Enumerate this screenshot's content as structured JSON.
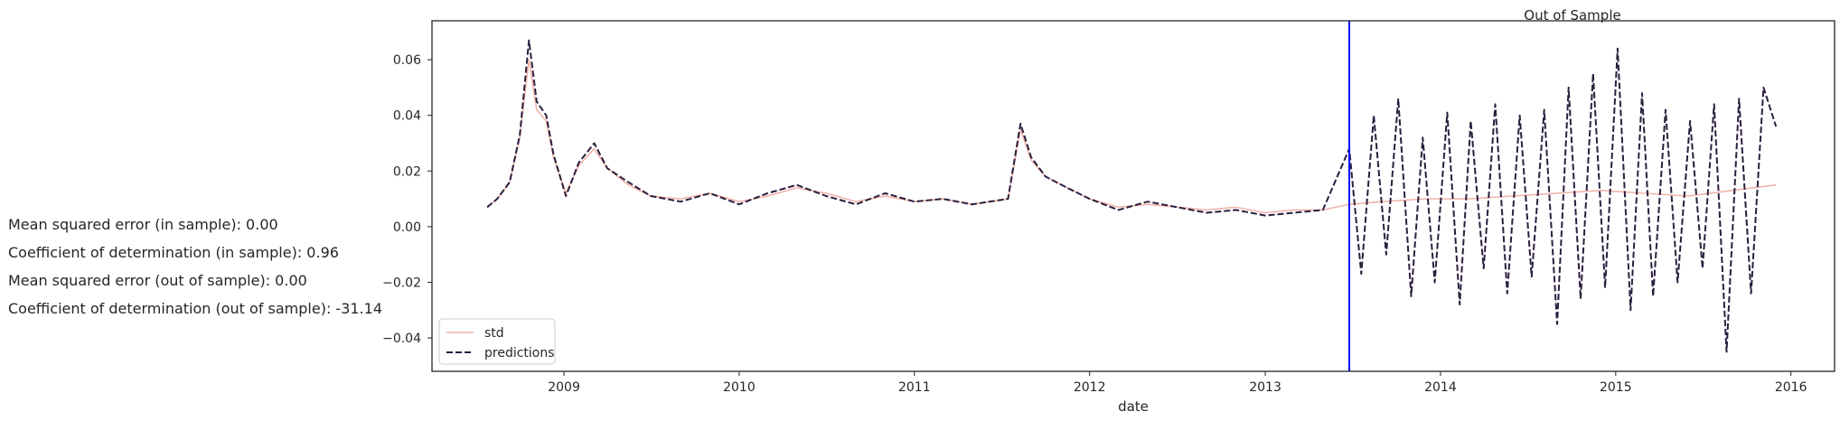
{
  "stats": {
    "mse_in": "Mean squared error (in sample): 0.00",
    "r2_in": "Coefficient of determination (in sample): 0.96",
    "mse_out": "Mean squared error (out of sample): 0.00",
    "r2_out": "Coefficient of determination (out of sample): -31.14"
  },
  "chart_data": {
    "type": "line",
    "title": "",
    "annotation": "Out of Sample",
    "xlabel": "date",
    "ylabel": "",
    "xlim": [
      "2008-04-01",
      "2016-04-01"
    ],
    "ylim": [
      -0.052,
      0.074
    ],
    "x_ticks": [
      "2009",
      "2010",
      "2011",
      "2012",
      "2013",
      "2014",
      "2015",
      "2016"
    ],
    "y_ticks": [
      -0.04,
      -0.02,
      0.0,
      0.02,
      0.04,
      0.06
    ],
    "y_tick_labels": [
      "−0.04",
      "−0.02",
      "0.00",
      "0.02",
      "0.04",
      "0.06"
    ],
    "split_date": "2013-06-25",
    "split_line_color": "#0000ff",
    "grid": false,
    "legend_position": "lower-left",
    "series": [
      {
        "name": "std",
        "style": "solid",
        "color": "#f1b0a8",
        "x": [
          "2008-07-25",
          "2008-08-15",
          "2008-09-10",
          "2008-10-01",
          "2008-10-20",
          "2008-11-05",
          "2008-11-25",
          "2008-12-10",
          "2009-01-05",
          "2009-02-01",
          "2009-03-05",
          "2009-04-01",
          "2009-05-15",
          "2009-07-01",
          "2009-09-01",
          "2009-11-01",
          "2010-01-01",
          "2010-03-01",
          "2010-05-01",
          "2010-07-01",
          "2010-09-01",
          "2010-11-01",
          "2011-01-01",
          "2011-03-01",
          "2011-05-01",
          "2011-07-15",
          "2011-08-10",
          "2011-09-01",
          "2011-10-01",
          "2011-11-15",
          "2012-01-01",
          "2012-03-01",
          "2012-05-01",
          "2012-07-01",
          "2012-09-01",
          "2012-11-01",
          "2013-01-01",
          "2013-03-01",
          "2013-05-01",
          "2013-06-25",
          "2013-09-01",
          "2013-12-01",
          "2014-03-01",
          "2014-06-01",
          "2014-09-01",
          "2014-12-01",
          "2015-03-01",
          "2015-06-01",
          "2015-09-01",
          "2015-12-01"
        ],
        "y": [
          0.007,
          0.01,
          0.016,
          0.032,
          0.06,
          0.042,
          0.038,
          0.025,
          0.012,
          0.022,
          0.028,
          0.021,
          0.015,
          0.011,
          0.01,
          0.012,
          0.009,
          0.011,
          0.014,
          0.012,
          0.009,
          0.011,
          0.009,
          0.01,
          0.008,
          0.01,
          0.035,
          0.024,
          0.018,
          0.014,
          0.01,
          0.007,
          0.008,
          0.007,
          0.006,
          0.007,
          0.005,
          0.006,
          0.006,
          0.008,
          0.009,
          0.01,
          0.01,
          0.011,
          0.012,
          0.013,
          0.012,
          0.011,
          0.013,
          0.015
        ]
      },
      {
        "name": "predictions",
        "style": "dashed",
        "color": "#2b1e3e",
        "x": [
          "2008-07-25",
          "2008-08-15",
          "2008-09-10",
          "2008-10-01",
          "2008-10-20",
          "2008-11-05",
          "2008-11-25",
          "2008-12-10",
          "2009-01-05",
          "2009-02-01",
          "2009-03-05",
          "2009-04-01",
          "2009-05-15",
          "2009-07-01",
          "2009-09-01",
          "2009-11-01",
          "2010-01-01",
          "2010-03-01",
          "2010-05-01",
          "2010-07-01",
          "2010-09-01",
          "2010-11-01",
          "2011-01-01",
          "2011-03-01",
          "2011-05-01",
          "2011-07-15",
          "2011-08-10",
          "2011-09-01",
          "2011-10-01",
          "2011-11-15",
          "2012-01-01",
          "2012-03-01",
          "2012-05-01",
          "2012-07-01",
          "2012-09-01",
          "2012-11-01",
          "2013-01-01",
          "2013-03-01",
          "2013-05-01",
          "2013-06-25",
          "2013-07-20",
          "2013-08-15",
          "2013-09-10",
          "2013-10-05",
          "2013-11-01",
          "2013-11-25",
          "2013-12-20",
          "2014-01-15",
          "2014-02-10",
          "2014-03-05",
          "2014-04-01",
          "2014-04-25",
          "2014-05-20",
          "2014-06-15",
          "2014-07-10",
          "2014-08-05",
          "2014-09-01",
          "2014-09-25",
          "2014-10-20",
          "2014-11-15",
          "2014-12-10",
          "2015-01-05",
          "2015-02-01",
          "2015-02-25",
          "2015-03-20",
          "2015-04-15",
          "2015-05-10",
          "2015-06-05",
          "2015-07-01",
          "2015-07-25",
          "2015-08-20",
          "2015-09-15",
          "2015-10-10",
          "2015-11-05",
          "2015-12-01"
        ],
        "y": [
          0.007,
          0.01,
          0.016,
          0.033,
          0.067,
          0.045,
          0.04,
          0.026,
          0.011,
          0.023,
          0.03,
          0.021,
          0.016,
          0.011,
          0.009,
          0.012,
          0.008,
          0.012,
          0.015,
          0.011,
          0.008,
          0.012,
          0.009,
          0.01,
          0.008,
          0.01,
          0.037,
          0.025,
          0.018,
          0.014,
          0.01,
          0.006,
          0.009,
          0.007,
          0.005,
          0.006,
          0.004,
          0.005,
          0.006,
          0.028,
          -0.017,
          0.04,
          -0.01,
          0.046,
          -0.025,
          0.032,
          -0.02,
          0.041,
          -0.028,
          0.038,
          -0.015,
          0.044,
          -0.024,
          0.04,
          -0.018,
          0.042,
          -0.035,
          0.05,
          -0.026,
          0.055,
          -0.022,
          0.064,
          -0.03,
          0.048,
          -0.025,
          0.042,
          -0.02,
          0.038,
          -0.015,
          0.044,
          -0.045,
          0.046,
          -0.024,
          0.05,
          0.036
        ]
      }
    ]
  }
}
